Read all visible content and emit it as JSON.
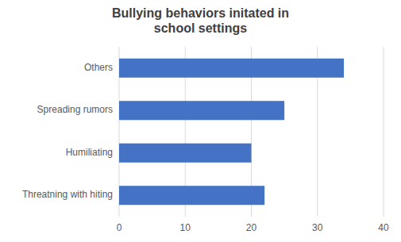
{
  "chart_data": {
    "type": "bar",
    "orientation": "horizontal",
    "title": "Bullying behaviors initated in\nschool settings",
    "categories": [
      "Threatning with hiting",
      "Humiliating",
      "Spreading rumors",
      "Others"
    ],
    "values": [
      22,
      20,
      25,
      34
    ],
    "color": "#4472C4",
    "xlim": [
      0,
      40
    ],
    "xticks": [
      0,
      10,
      20,
      30,
      40
    ],
    "grid": true
  }
}
